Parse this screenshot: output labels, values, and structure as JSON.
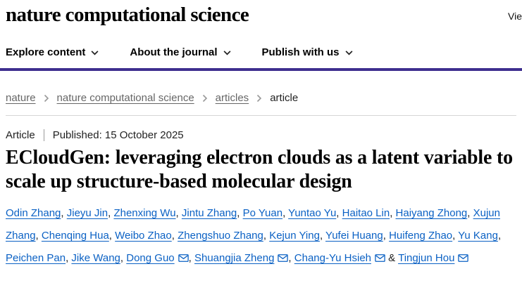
{
  "colors": {
    "accent": "#3e2f8f",
    "link": "#0b61c4",
    "crumb": "#666666"
  },
  "header": {
    "logo": "nature computational science",
    "right_text": "Vie"
  },
  "nav": {
    "items": [
      {
        "label": "Explore content"
      },
      {
        "label": "About the journal"
      },
      {
        "label": "Publish with us"
      }
    ]
  },
  "breadcrumb": {
    "items": [
      {
        "label": "nature"
      },
      {
        "label": "nature computational science"
      },
      {
        "label": "articles"
      },
      {
        "label": "article"
      }
    ]
  },
  "article": {
    "type_label": "Article",
    "published": "Published: 15 October 2025",
    "title": "ECloudGen: leveraging electron clouds as a latent variable to scale up structure-based molecular design",
    "authors": [
      {
        "name": "Odin Zhang"
      },
      {
        "name": "Jieyu Jin"
      },
      {
        "name": "Zhenxing Wu"
      },
      {
        "name": "Jintu Zhang"
      },
      {
        "name": "Po Yuan"
      },
      {
        "name": "Yuntao Yu"
      },
      {
        "name": "Haitao Lin"
      },
      {
        "name": "Haiyang Zhong"
      },
      {
        "name": "Xujun Zhang"
      },
      {
        "name": "Chenqing Hua"
      },
      {
        "name": "Weibo Zhao"
      },
      {
        "name": "Zhengshuo Zhang"
      },
      {
        "name": "Kejun Ying"
      },
      {
        "name": "Yufei Huang"
      },
      {
        "name": "Huifeng Zhao"
      },
      {
        "name": "Yu Kang"
      },
      {
        "name": "Peichen Pan"
      },
      {
        "name": "Jike Wang"
      },
      {
        "name": "Dong Guo",
        "email": true
      },
      {
        "name": "Shuangjia Zheng",
        "email": true
      },
      {
        "name": "Chang-Yu Hsieh",
        "email": true
      },
      {
        "name": "Tingjun Hou",
        "email": true
      }
    ]
  }
}
